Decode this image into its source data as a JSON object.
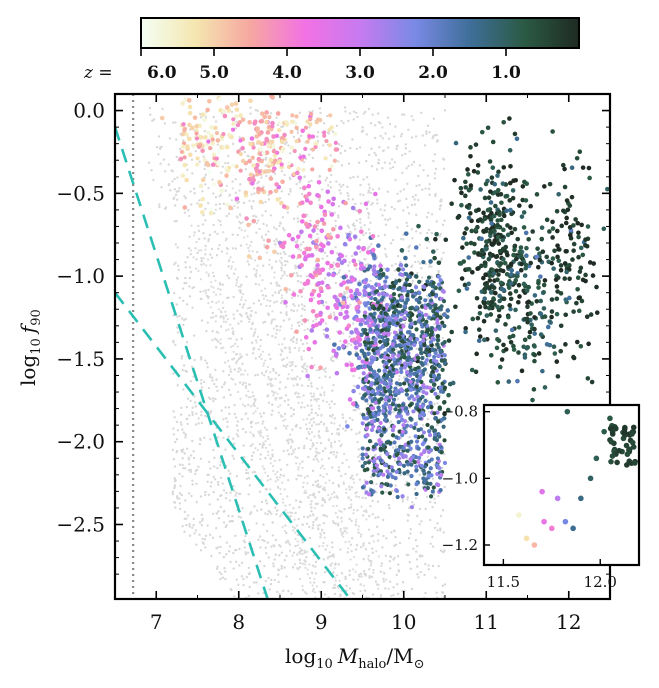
{
  "chart_data": {
    "type": "scatter",
    "colorbar": {
      "variable": "z",
      "label_prefix": "z = ",
      "ticks": [
        "6.0",
        "5.0",
        "4.0",
        "3.0",
        "2.0",
        "1.0"
      ],
      "tick_values": [
        6.0,
        5.0,
        4.0,
        3.0,
        2.0,
        1.0
      ],
      "range": [
        6.0,
        0.0
      ],
      "colormap_stops": [
        "#f4fff4",
        "#f5e6b0",
        "#f6a7a0",
        "#f272e4",
        "#c77af0",
        "#7a8ae6",
        "#3f6f9a",
        "#2b5a44",
        "#1e2a22"
      ]
    },
    "main": {
      "xlabel": "log10 Mhalo/M⊙",
      "xlabel_parts": {
        "log": "log",
        "sub10": "10",
        "M": "M",
        "sub_halo": "halo",
        "slash": "/M",
        "sun": "⊙"
      },
      "ylabel_parts": {
        "log": "log",
        "sub10": "10",
        "f": "f",
        "sub90": "90"
      },
      "xlim": [
        6.5,
        12.5
      ],
      "ylim": [
        -2.95,
        0.1
      ],
      "xticks": [
        7,
        8,
        9,
        10,
        11,
        12
      ],
      "xtick_labels": [
        "7",
        "8",
        "9",
        "10",
        "11",
        "12"
      ],
      "yticks": [
        0.0,
        -0.5,
        -1.0,
        -1.5,
        -2.0,
        -2.5
      ],
      "ytick_labels": [
        "0.0",
        "−0.5",
        "−1.0",
        "−1.5",
        "−2.0",
        "−2.5"
      ],
      "vertical_line": {
        "x": 6.72,
        "style": "dotted",
        "color": "#888888"
      },
      "dashed_lines": [
        {
          "x1": 6.5,
          "y1": -0.1,
          "x2": 8.35,
          "y2": -2.95,
          "color": "#2bbfb4"
        },
        {
          "x1": 6.5,
          "y1": -1.1,
          "x2": 9.35,
          "y2": -2.95,
          "color": "#2bbfb4"
        }
      ],
      "background_points_color": "#d8d8d8",
      "colored_tracks": [
        {
          "x": 10.95,
          "y": -0.75,
          "z": 0.3
        },
        {
          "x": 11.05,
          "y": -0.95,
          "z": 0.6
        },
        {
          "x": 11.25,
          "y": -0.88,
          "z": 0.4
        },
        {
          "x": 11.55,
          "y": -1.15,
          "z": 0.7
        },
        {
          "x": 12.0,
          "y": -0.93,
          "z": 0.3
        },
        {
          "x": 10.25,
          "y": -1.35,
          "z": 0.8
        },
        {
          "x": 9.85,
          "y": -1.45,
          "z": 1.6
        },
        {
          "x": 9.6,
          "y": -1.3,
          "z": 2.4
        },
        {
          "x": 9.3,
          "y": -1.1,
          "z": 3.2
        },
        {
          "x": 8.9,
          "y": -0.85,
          "z": 3.9
        },
        {
          "x": 8.3,
          "y": -0.25,
          "z": 4.6
        },
        {
          "x": 7.6,
          "y": -0.05,
          "z": 5.3
        }
      ]
    },
    "inset": {
      "xlim": [
        11.4,
        12.2
      ],
      "ylim": [
        -1.26,
        -0.78
      ],
      "xticks": [
        11.5,
        12.0
      ],
      "xtick_labels": [
        "11.5",
        "12.0"
      ],
      "yticks": [
        -0.8,
        -1.0,
        -1.2
      ],
      "ytick_labels": [
        "−0.8",
        "−1.0",
        "−1.2"
      ],
      "points": [
        {
          "x": 11.58,
          "y": -1.11,
          "z": 5.6
        },
        {
          "x": 11.62,
          "y": -1.18,
          "z": 5.2
        },
        {
          "x": 11.66,
          "y": -1.2,
          "z": 4.7
        },
        {
          "x": 11.71,
          "y": -1.13,
          "z": 3.6
        },
        {
          "x": 11.75,
          "y": -1.15,
          "z": 3.9
        },
        {
          "x": 11.82,
          "y": -1.13,
          "z": 2.2
        },
        {
          "x": 11.7,
          "y": -1.04,
          "z": 3.4
        },
        {
          "x": 11.78,
          "y": -1.06,
          "z": 2.9
        },
        {
          "x": 11.86,
          "y": -1.15,
          "z": 1.4
        },
        {
          "x": 11.9,
          "y": -1.06,
          "z": 1.3
        },
        {
          "x": 11.95,
          "y": -1.0,
          "z": 1.0
        },
        {
          "x": 11.98,
          "y": -0.94,
          "z": 0.9
        },
        {
          "x": 12.02,
          "y": -0.86,
          "z": 0.8
        },
        {
          "x": 12.05,
          "y": -0.82,
          "z": 0.7
        },
        {
          "x": 12.08,
          "y": -0.85,
          "z": 0.6
        },
        {
          "x": 12.12,
          "y": -0.88,
          "z": 0.5
        },
        {
          "x": 12.15,
          "y": -0.92,
          "z": 0.3
        },
        {
          "x": 12.18,
          "y": -0.95,
          "z": 0.2
        },
        {
          "x": 11.83,
          "y": -0.8,
          "z": 0.9
        }
      ]
    }
  }
}
